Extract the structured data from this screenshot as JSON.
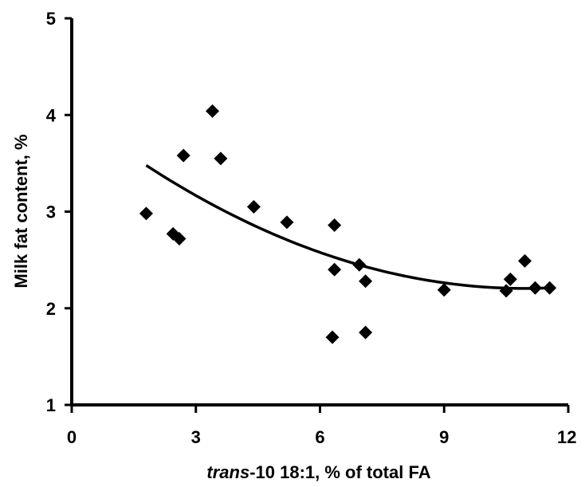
{
  "chart_data": {
    "type": "scatter",
    "title": "",
    "xlabel_italic": "trans",
    "xlabel_rest": "-10 18:1, % of total FA",
    "ylabel": "Milk fat content, %",
    "xlim": [
      0,
      12
    ],
    "ylim": [
      1,
      5
    ],
    "x_ticks": [
      0,
      3,
      6,
      9,
      12
    ],
    "x_tick_labels": [
      "0",
      "3",
      "6",
      "9",
      "12"
    ],
    "y_ticks": [
      1,
      2,
      3,
      4,
      5
    ],
    "y_tick_labels": [
      "1",
      "2",
      "3",
      "4",
      "5"
    ],
    "grid": false,
    "marker": "diamond",
    "color": "#000000",
    "points": [
      {
        "x": 1.8,
        "y": 2.98
      },
      {
        "x": 2.45,
        "y": 2.77
      },
      {
        "x": 2.6,
        "y": 2.72
      },
      {
        "x": 2.7,
        "y": 3.58
      },
      {
        "x": 3.4,
        "y": 4.04
      },
      {
        "x": 3.6,
        "y": 3.55
      },
      {
        "x": 4.4,
        "y": 3.05
      },
      {
        "x": 5.2,
        "y": 2.89
      },
      {
        "x": 6.3,
        "y": 1.7
      },
      {
        "x": 6.35,
        "y": 2.86
      },
      {
        "x": 6.35,
        "y": 2.4
      },
      {
        "x": 6.95,
        "y": 2.45
      },
      {
        "x": 7.1,
        "y": 2.28
      },
      {
        "x": 7.1,
        "y": 1.75
      },
      {
        "x": 9.0,
        "y": 2.19
      },
      {
        "x": 10.5,
        "y": 2.18
      },
      {
        "x": 10.6,
        "y": 2.3
      },
      {
        "x": 10.95,
        "y": 2.49
      },
      {
        "x": 11.2,
        "y": 2.21
      },
      {
        "x": 11.55,
        "y": 2.21
      }
    ],
    "trendline": {
      "type": "polynomial-2",
      "color": "#000000",
      "x_range": [
        1.8,
        11.55
      ],
      "points": [
        {
          "x": 1.8,
          "y": 3.46
        },
        {
          "x": 3.0,
          "y": 3.18
        },
        {
          "x": 4.5,
          "y": 2.86
        },
        {
          "x": 6.0,
          "y": 2.58
        },
        {
          "x": 7.5,
          "y": 2.37
        },
        {
          "x": 9.0,
          "y": 2.25
        },
        {
          "x": 10.5,
          "y": 2.21
        },
        {
          "x": 11.55,
          "y": 2.22
        }
      ]
    }
  }
}
